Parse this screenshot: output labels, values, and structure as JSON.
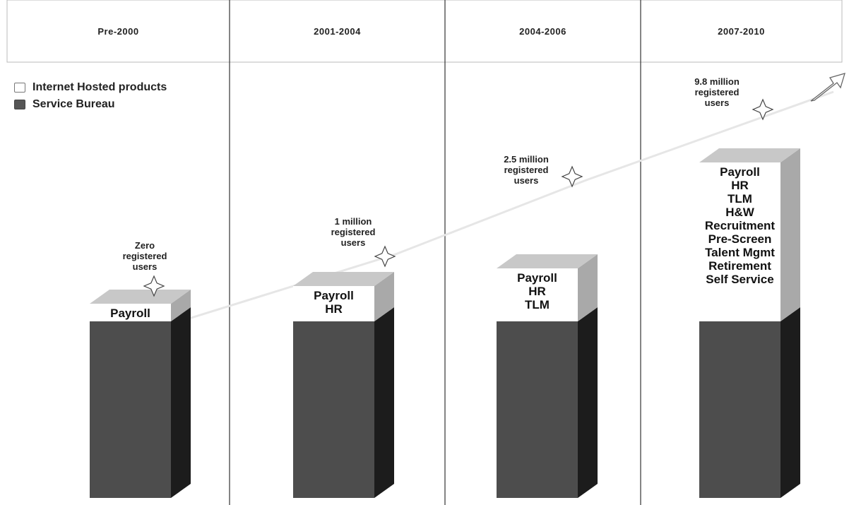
{
  "chart_data": {
    "type": "bar",
    "stacked": true,
    "categories": [
      "Pre-2000",
      "2001-2004",
      "2004-2006",
      "2007-2010"
    ],
    "series": [
      {
        "name": "Internet Hosted products",
        "values": [
          1,
          2,
          3,
          9
        ],
        "color": "#ffffff"
      },
      {
        "name": "Service Bureau",
        "values": [
          1,
          1,
          1,
          1
        ],
        "color": "#4a4a4a"
      }
    ],
    "bar_labels": [
      "Payroll",
      "Payroll\nHR",
      "Payroll\nHR\nTLM",
      "Payroll\nHR\nTLM\nH&W\nRecruitment\nPre-Screen\nTalent Mgmt\nRetirement\nSelf Service"
    ],
    "callouts": [
      "Zero\nregistered\nusers",
      "1 million\nregistered\nusers",
      "2.5 million\nregistered\nusers",
      "9.8 million\nregistered\nusers"
    ],
    "legend_position": "top-left",
    "grid": false
  },
  "colors": {
    "hosted_front": "#ffffff",
    "hosted_top": "#c8c8c8",
    "hosted_side": "#a9a9a9",
    "bureau_front": "#4d4d4d",
    "bureau_side": "#1c1c1c",
    "divider": "#333333",
    "header_border": "#bbbbbb"
  },
  "icons": {
    "star": "four-point-star-icon",
    "arrow": "up-right-arrow-icon"
  }
}
